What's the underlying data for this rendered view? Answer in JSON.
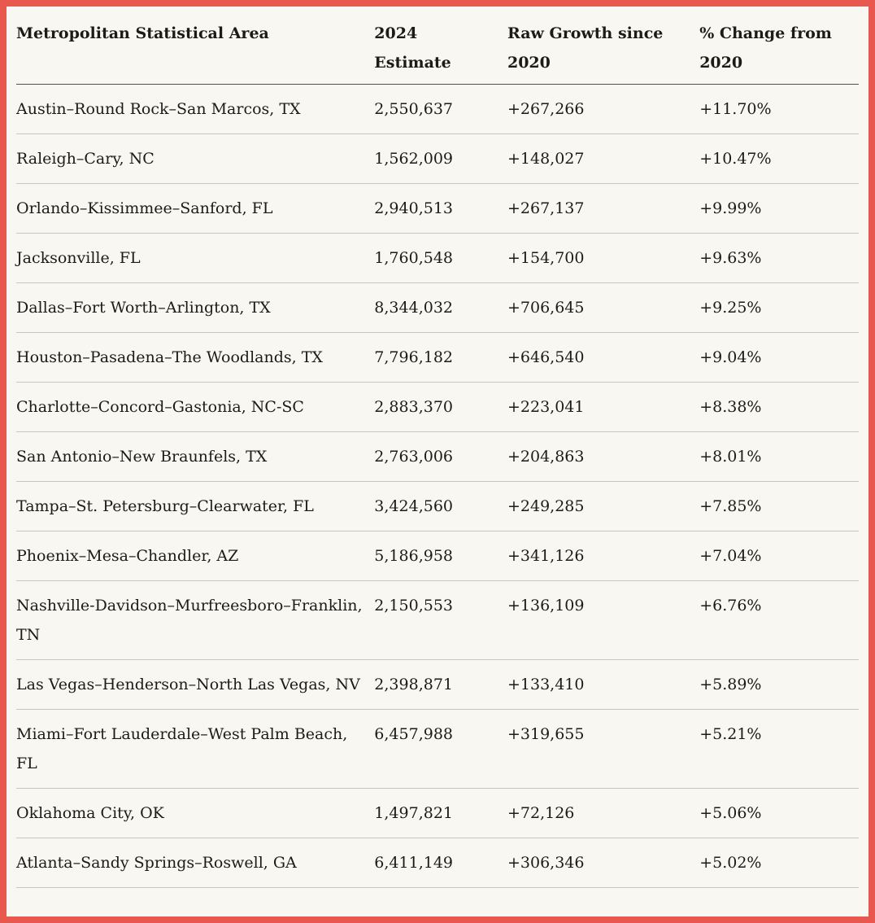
{
  "colors": {
    "frame_border": "#e8584e",
    "background": "#f9f7f1",
    "text": "#1c1b17",
    "header_divider": "#55534d",
    "row_divider": "#c9c6be"
  },
  "chart_data": {
    "type": "table",
    "title": "",
    "columns": [
      "Metropolitan Statistical Area",
      "2024 Estimate",
      "Raw Growth since 2020",
      "% Change from 2020"
    ],
    "rows": [
      [
        "Austin–Round Rock–San Marcos, TX",
        "2,550,637",
        "+267,266",
        "+11.70%"
      ],
      [
        "Raleigh–Cary, NC",
        "1,562,009",
        "+148,027",
        "+10.47%"
      ],
      [
        "Orlando–Kissimmee–Sanford, FL",
        "2,940,513",
        "+267,137",
        "+9.99%"
      ],
      [
        "Jacksonville, FL",
        "1,760,548",
        "+154,700",
        "+9.63%"
      ],
      [
        "Dallas–Fort Worth–Arlington, TX",
        "8,344,032",
        "+706,645",
        "+9.25%"
      ],
      [
        "Houston–Pasadena–The Woodlands, TX",
        "7,796,182",
        "+646,540",
        "+9.04%"
      ],
      [
        "Charlotte–Concord–Gastonia, NC-SC",
        "2,883,370",
        "+223,041",
        "+8.38%"
      ],
      [
        "San Antonio–New Braunfels, TX",
        "2,763,006",
        "+204,863",
        "+8.01%"
      ],
      [
        "Tampa–St. Petersburg–Clearwater, FL",
        "3,424,560",
        "+249,285",
        "+7.85%"
      ],
      [
        "Phoenix–Mesa–Chandler, AZ",
        "5,186,958",
        "+341,126",
        "+7.04%"
      ],
      [
        "Nashville-Davidson–Murfreesboro–Franklin, TN",
        "2,150,553",
        "+136,109",
        "+6.76%"
      ],
      [
        "Las Vegas–Henderson–North Las Vegas, NV",
        "2,398,871",
        "+133,410",
        "+5.89%"
      ],
      [
        "Miami–Fort Lauderdale–West Palm Beach, FL",
        "6,457,988",
        "+319,655",
        "+5.21%"
      ],
      [
        "Oklahoma City, OK",
        "1,497,821",
        "+72,126",
        "+5.06%"
      ],
      [
        "Atlanta–Sandy Springs–Roswell, GA",
        "6,411,149",
        "+306,346",
        "+5.02%"
      ]
    ]
  }
}
